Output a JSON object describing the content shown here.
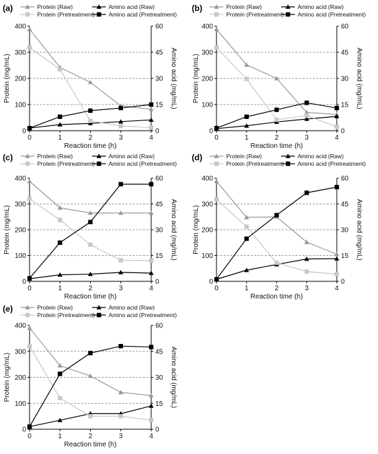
{
  "figure": {
    "background": "#ffffff"
  },
  "style": {
    "colors": {
      "protein_raw": "#999999",
      "amino_raw": "#000000",
      "protein_pretreatment": "#c8c8c8",
      "amino_pretreatment": "#000000"
    },
    "markers": {
      "protein_raw": "triangle",
      "amino_raw": "triangle",
      "protein_pretreatment": "square",
      "amino_pretreatment": "square"
    }
  },
  "chart_data": [
    {
      "panel": "(a)",
      "type": "line",
      "xlabel": "Reaction time (h)",
      "ylabel_left": "Protein (mg/mL)",
      "ylabel_right": "Amino acid (mg/mL)",
      "x": [
        0,
        1,
        2,
        3,
        4
      ],
      "xlim": [
        0,
        4
      ],
      "ylim_left": [
        0,
        400
      ],
      "ylim_right": [
        0,
        60
      ],
      "yticks_left": [
        0,
        100,
        200,
        300,
        400
      ],
      "yticks_right": [
        0,
        15,
        30,
        45,
        60
      ],
      "grid": "dashed horizontal at right-axis ticks",
      "legend": "top",
      "series": [
        {
          "name": "Protein (Raw)",
          "axis": "left",
          "values": [
            388,
            242,
            185,
            95,
            82
          ]
        },
        {
          "name": "Amino acid (Raw)",
          "axis": "right",
          "values": [
            1.5,
            3.5,
            4.2,
            5.2,
            6.2
          ]
        },
        {
          "name": "Protein (Pretreatment)",
          "axis": "left",
          "values": [
            318,
            235,
            38,
            18,
            12
          ]
        },
        {
          "name": "Amino acid (Pretreatment)",
          "axis": "right",
          "values": [
            1.5,
            8,
            11.5,
            13,
            15
          ]
        }
      ]
    },
    {
      "panel": "(b)",
      "type": "line",
      "xlabel": "Reaction time (h)",
      "ylabel_left": "Protein (mg/mL)",
      "ylabel_right": "Amino acid (mg/mL)",
      "x": [
        0,
        1,
        2,
        3,
        4
      ],
      "xlim": [
        0,
        4
      ],
      "ylim_left": [
        0,
        400
      ],
      "ylim_right": [
        0,
        60
      ],
      "yticks_left": [
        0,
        100,
        200,
        300,
        400
      ],
      "yticks_right": [
        0,
        15,
        30,
        45,
        60
      ],
      "grid": "dashed horizontal at right-axis ticks",
      "legend": "top",
      "series": [
        {
          "name": "Protein (Raw)",
          "axis": "left",
          "values": [
            388,
            252,
            200,
            70,
            62
          ]
        },
        {
          "name": "Amino acid (Raw)",
          "axis": "right",
          "values": [
            1.2,
            2.8,
            5,
            6.7,
            8.2
          ]
        },
        {
          "name": "Protein (Pretreatment)",
          "axis": "left",
          "values": [
            318,
            198,
            42,
            58,
            15
          ]
        },
        {
          "name": "Amino acid (Pretreatment)",
          "axis": "right",
          "values": [
            1.5,
            8,
            12,
            16,
            13
          ]
        }
      ]
    },
    {
      "panel": "(c)",
      "type": "line",
      "xlabel": "Reaction time (h)",
      "ylabel_left": "Protein (mg/mL)",
      "ylabel_right": "Amino acid (mg/mL)",
      "x": [
        0,
        1,
        2,
        3,
        4
      ],
      "xlim": [
        0,
        4
      ],
      "ylim_left": [
        0,
        400
      ],
      "ylim_right": [
        0,
        60
      ],
      "yticks_left": [
        0,
        100,
        200,
        300,
        400
      ],
      "yticks_right": [
        0,
        15,
        30,
        45,
        60
      ],
      "grid": "dashed horizontal at right-axis ticks",
      "legend": "top",
      "series": [
        {
          "name": "Protein (Raw)",
          "axis": "left",
          "values": [
            388,
            285,
            265,
            265,
            265
          ]
        },
        {
          "name": "Amino acid (Raw)",
          "axis": "right",
          "values": [
            1.5,
            3.8,
            4.2,
            5.2,
            4.8
          ]
        },
        {
          "name": "Protein (Pretreatment)",
          "axis": "left",
          "values": [
            320,
            238,
            142,
            82,
            80
          ]
        },
        {
          "name": "Amino acid (Pretreatment)",
          "axis": "right",
          "values": [
            1.8,
            22.5,
            34.5,
            56.5,
            56.5
          ]
        }
      ]
    },
    {
      "panel": "(d)",
      "type": "line",
      "xlabel": "Reaction time (h)",
      "ylabel_left": "Protein (mg/mL)",
      "ylabel_right": "Amino acid (mg/mL)",
      "x": [
        0,
        1,
        2,
        3,
        4
      ],
      "xlim": [
        0,
        4
      ],
      "ylim_left": [
        0,
        400
      ],
      "ylim_right": [
        0,
        60
      ],
      "yticks_left": [
        0,
        100,
        200,
        300,
        400
      ],
      "yticks_right": [
        0,
        15,
        30,
        45,
        60
      ],
      "grid": "dashed horizontal at right-axis ticks",
      "legend": "top",
      "series": [
        {
          "name": "Protein (Raw)",
          "axis": "left",
          "values": [
            388,
            248,
            250,
            152,
            105
          ]
        },
        {
          "name": "Amino acid (Raw)",
          "axis": "right",
          "values": [
            1.2,
            6.5,
            9.8,
            13,
            13.2
          ]
        },
        {
          "name": "Protein (Pretreatment)",
          "axis": "left",
          "values": [
            318,
            212,
            72,
            38,
            28
          ]
        },
        {
          "name": "Amino acid (Pretreatment)",
          "axis": "right",
          "values": [
            1.2,
            24.8,
            38.5,
            51.5,
            54.8
          ]
        }
      ]
    },
    {
      "panel": "(e)",
      "type": "line",
      "xlabel": "Reaction time (h)",
      "ylabel_left": "Protein (mg/mL)",
      "ylabel_right": "Amino acid (mg/mL)",
      "x": [
        0,
        1,
        2,
        3,
        4
      ],
      "xlim": [
        0,
        4
      ],
      "ylim_left": [
        0,
        400
      ],
      "ylim_right": [
        0,
        60
      ],
      "yticks_left": [
        0,
        100,
        200,
        300,
        400
      ],
      "yticks_right": [
        0,
        15,
        30,
        45,
        60
      ],
      "grid": "dashed horizontal at right-axis ticks",
      "legend": "top",
      "series": [
        {
          "name": "Protein (Raw)",
          "axis": "left",
          "values": [
            390,
            245,
            205,
            142,
            130
          ]
        },
        {
          "name": "Amino acid (Raw)",
          "axis": "right",
          "values": [
            1.5,
            5.2,
            9,
            9,
            13.5
          ]
        },
        {
          "name": "Protein (Pretreatment)",
          "axis": "left",
          "values": [
            320,
            120,
            50,
            50,
            35
          ]
        },
        {
          "name": "Amino acid (Pretreatment)",
          "axis": "right",
          "values": [
            1.5,
            32,
            44,
            48,
            47.5
          ]
        }
      ]
    }
  ]
}
